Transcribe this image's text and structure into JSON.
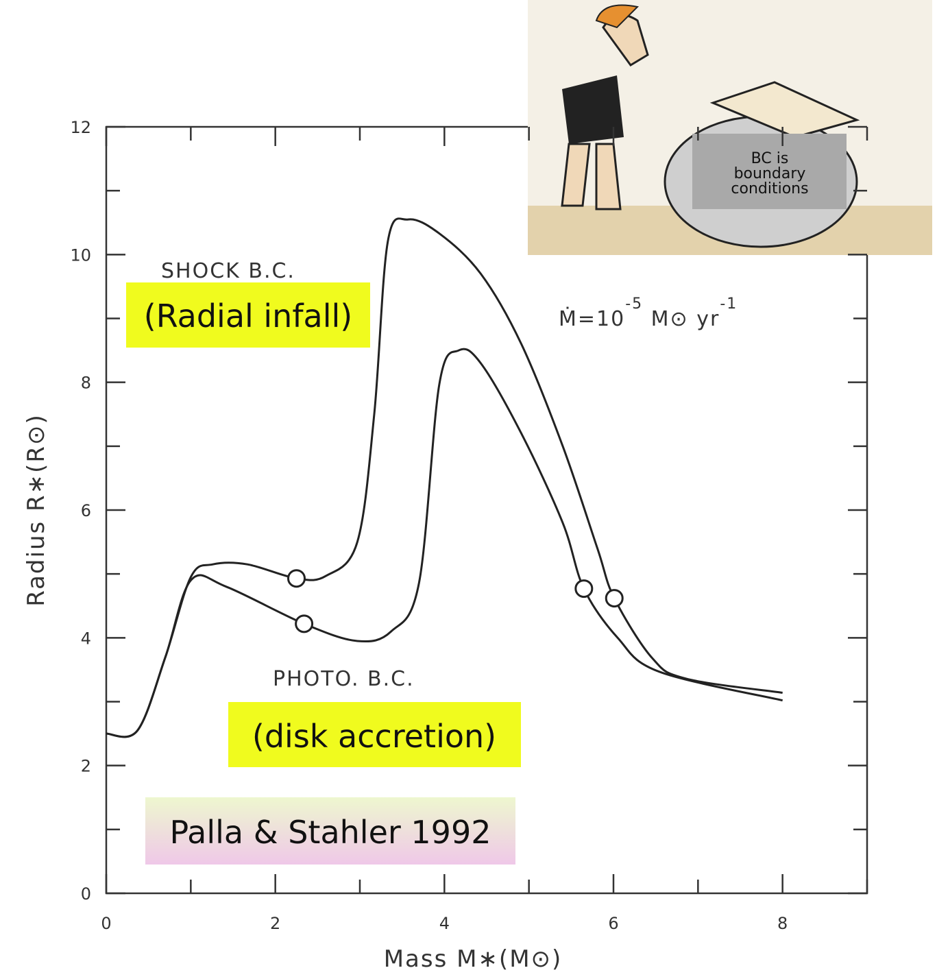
{
  "chart_data": {
    "type": "line",
    "xlabel": "Mass  M∗(M⊙)",
    "ylabel": "Radius  R∗(R⊙)",
    "xlim": [
      0,
      9
    ],
    "ylim": [
      0,
      12
    ],
    "xticks": [
      0,
      2,
      4,
      6,
      8
    ],
    "yticks": [
      0,
      2,
      4,
      6,
      8,
      10,
      12
    ],
    "xticks_minor": [
      1,
      3,
      5,
      7,
      9
    ],
    "yticks_minor": [
      1,
      3,
      5,
      7,
      9,
      11
    ],
    "series": [
      {
        "name": "SHOCK B.C.",
        "color": "#222",
        "x": [
          0,
          0.37,
          0.7,
          1.0,
          1.26,
          1.67,
          2.25,
          2.6,
          2.97,
          3.17,
          3.33,
          3.57,
          3.94,
          4.43,
          4.91,
          5.4,
          5.81,
          6.01,
          6.46,
          6.86,
          8
        ],
        "values": [
          2.5,
          2.55,
          3.7,
          4.95,
          5.15,
          5.15,
          4.93,
          4.97,
          5.5,
          7.5,
          10.2,
          10.55,
          10.33,
          9.7,
          8.6,
          7.0,
          5.4,
          4.62,
          3.68,
          3.36,
          3.14
        ],
        "markers": {
          "x": [
            2.25,
            6.01
          ],
          "y": [
            4.93,
            4.62
          ]
        }
      },
      {
        "name": "PHOTO. B.C.",
        "color": "#222",
        "x": [
          0,
          0.37,
          0.7,
          1.0,
          1.42,
          2.34,
          2.97,
          3.37,
          3.7,
          3.94,
          4.17,
          4.43,
          4.91,
          5.4,
          5.65,
          6.05,
          6.54,
          8
        ],
        "values": [
          2.5,
          2.55,
          3.7,
          4.9,
          4.8,
          4.22,
          3.95,
          4.1,
          4.86,
          7.97,
          8.5,
          8.3,
          7.2,
          5.8,
          4.77,
          4.0,
          3.47,
          3.02
        ],
        "markers": {
          "x": [
            2.34,
            5.65
          ],
          "y": [
            4.22,
            4.77
          ]
        }
      }
    ],
    "annotations": {
      "radial": "(Radial infall)",
      "disk": "(disk accretion)",
      "reference": "Palla & Stahler 1992",
      "rate": {
        "base": "Ṁ=10",
        "exp1": "-5",
        "unit": " M⊙ yr",
        "exp2": "-1"
      },
      "cartoon_note": [
        "BC is",
        "boundary",
        "conditions"
      ]
    }
  }
}
